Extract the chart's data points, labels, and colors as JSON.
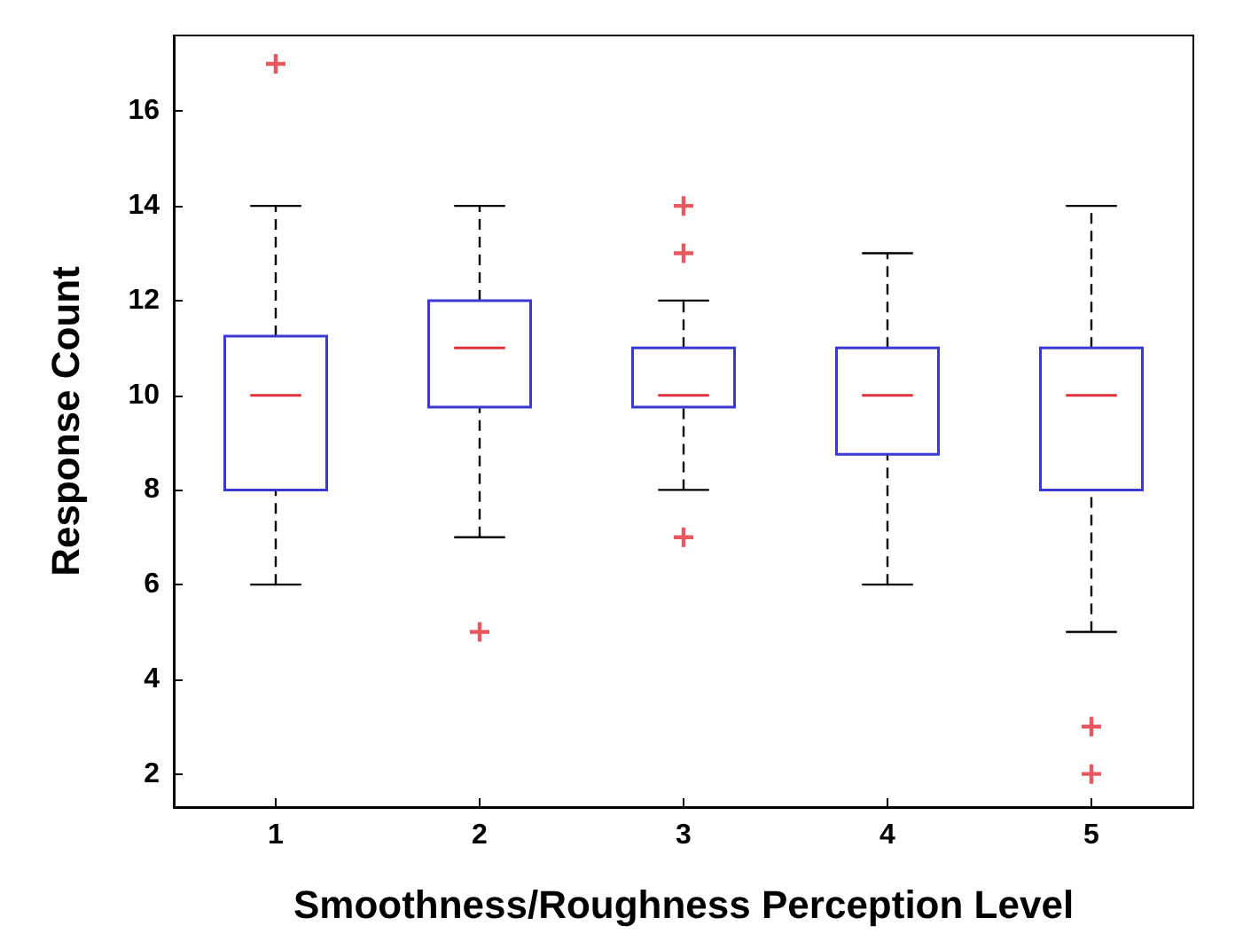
{
  "chart_data": {
    "type": "box",
    "xlabel": "Smoothness/Roughness Perception Level",
    "ylabel": "Response Count",
    "categories": [
      "1",
      "2",
      "3",
      "4",
      "5"
    ],
    "ylim": [
      1.3,
      17.6
    ],
    "yticks": [
      2,
      4,
      6,
      8,
      10,
      12,
      14,
      16
    ],
    "grid": false,
    "marker": "cross",
    "series": [
      {
        "type": "box",
        "color": "#3a3ad0",
        "boxes": [
          {
            "low": 6,
            "q1": 8,
            "median": 10,
            "q3": 11.25,
            "high": 14
          },
          {
            "low": 7,
            "q1": 9.75,
            "median": 11,
            "q3": 12,
            "high": 14
          },
          {
            "low": 8,
            "q1": 9.75,
            "median": 10,
            "q3": 11,
            "high": 12
          },
          {
            "low": 6,
            "q1": 8.75,
            "median": 10,
            "q3": 11,
            "high": 13
          },
          {
            "low": 5,
            "q1": 8,
            "median": 10,
            "q3": 11,
            "high": 14
          }
        ]
      },
      {
        "type": "scatter",
        "color": "#e0303a",
        "x": [
          "1",
          "2",
          "3",
          "3",
          "3",
          "5",
          "5"
        ],
        "values": [
          17,
          5,
          7,
          13,
          14,
          3,
          2
        ]
      }
    ]
  }
}
